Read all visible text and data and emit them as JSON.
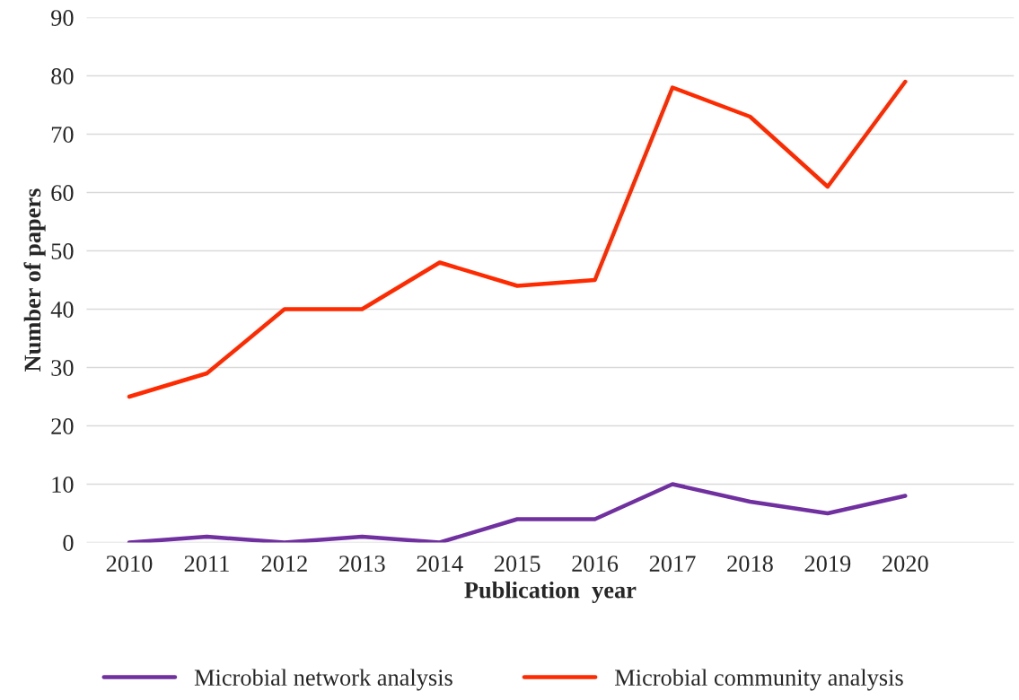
{
  "chart_data": {
    "type": "line",
    "xlabel": "Publication  year",
    "ylabel": "Number of papers",
    "categories": [
      "2010",
      "2011",
      "2012",
      "2013",
      "2014",
      "2015",
      "2016",
      "2017",
      "2018",
      "2019",
      "2020"
    ],
    "series": [
      {
        "name": "Microbial network analysis",
        "color": "#7030a0",
        "values": [
          0,
          1,
          0,
          1,
          0,
          4,
          4,
          10,
          7,
          5,
          8
        ]
      },
      {
        "name": "Microbial community analysis",
        "color": "#ff2a00",
        "values": [
          25,
          29,
          40,
          40,
          48,
          44,
          45,
          78,
          73,
          61,
          79
        ]
      }
    ],
    "ylim": [
      0,
      90
    ],
    "yticks": [
      0,
      10,
      20,
      30,
      40,
      50,
      60,
      70,
      80,
      90
    ],
    "grid": "y",
    "legend": "bottom",
    "marker": "none",
    "line_style": "solid"
  }
}
